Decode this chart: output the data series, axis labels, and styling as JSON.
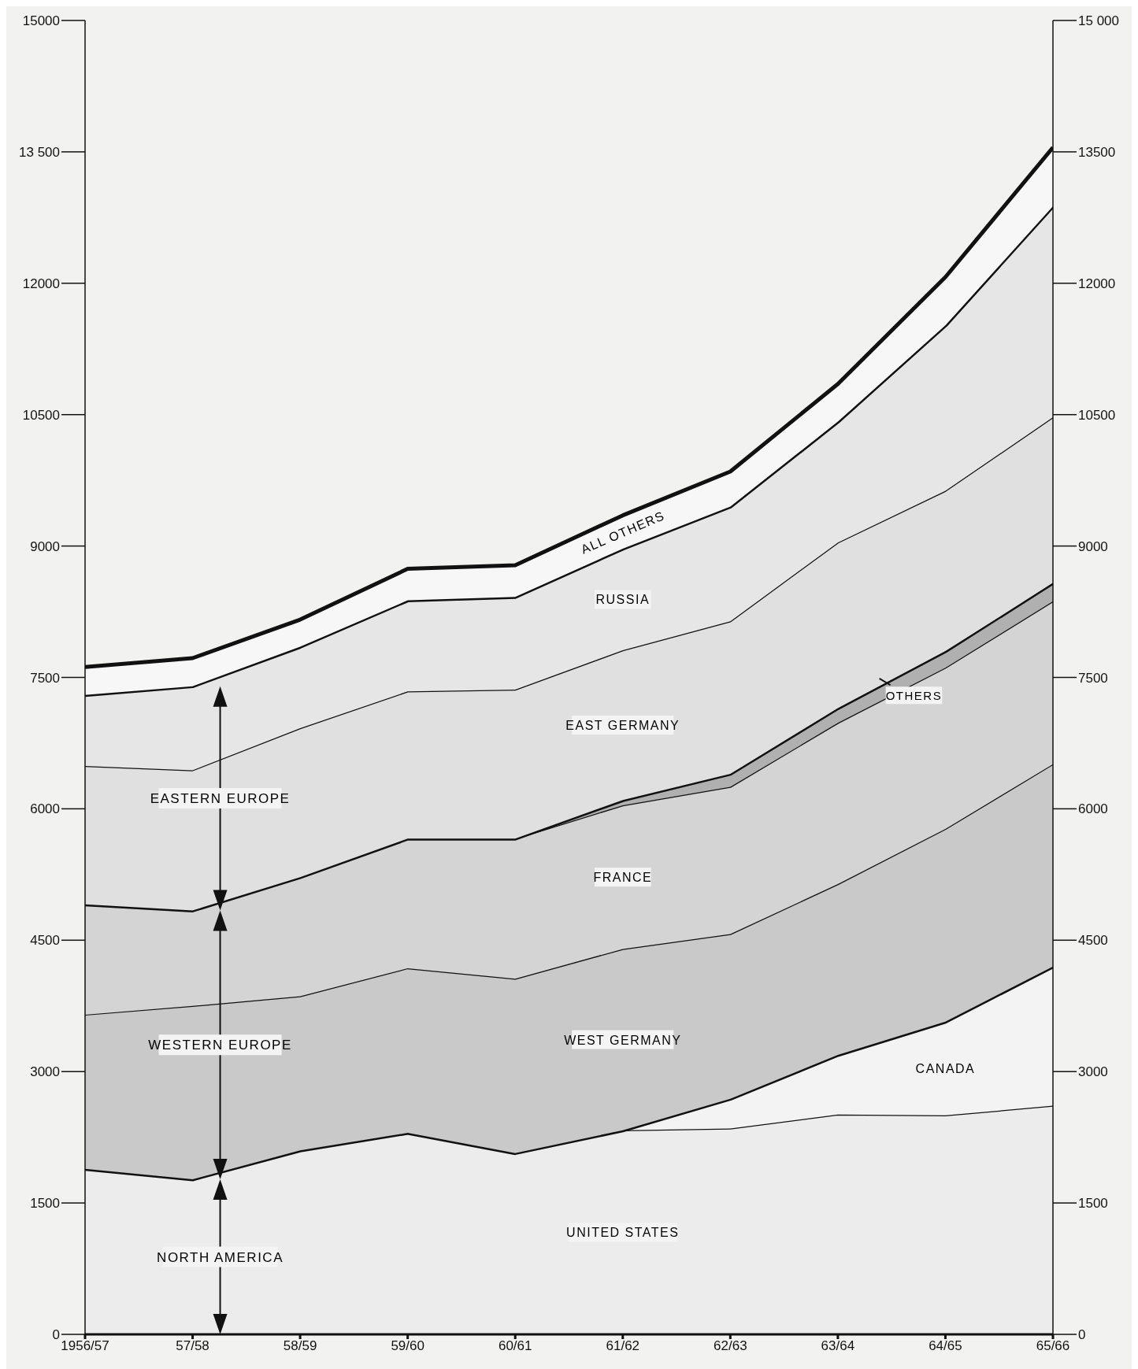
{
  "chart_data": {
    "type": "area",
    "stacked": true,
    "categories": [
      "1956/57",
      "57/58",
      "58/59",
      "59/60",
      "60/61",
      "61/62",
      "62/63",
      "63/64",
      "64/65",
      "65/66"
    ],
    "series": [
      {
        "name": "UNITED STATES",
        "color": "#ececec",
        "values": [
          1890,
          1770,
          2100,
          2300,
          2070,
          2330,
          2350,
          2510,
          2500,
          2610
        ]
      },
      {
        "name": "CANADA",
        "color": "#f3f3f3",
        "values": [
          0,
          0,
          0,
          0,
          0,
          0,
          340,
          680,
          1070,
          1590
        ]
      },
      {
        "name": "WEST GERMANY",
        "color": "#c9c9c9",
        "values": [
          1760,
          1980,
          1760,
          1880,
          1990,
          2070,
          1880,
          1950,
          2200,
          2310
        ]
      },
      {
        "name": "FRANCE",
        "color": "#d4d4d4",
        "values": [
          1260,
          1090,
          1360,
          1480,
          1600,
          1640,
          1680,
          1840,
          1840,
          1860
        ]
      },
      {
        "name": "OTHERS",
        "color": "#b0b0b0",
        "values": [
          0,
          0,
          0,
          0,
          0,
          60,
          150,
          170,
          190,
          210
        ]
      },
      {
        "name": "EAST GERMANY",
        "color": "#e0e0e0",
        "values": [
          1580,
          1600,
          1700,
          1680,
          1700,
          1710,
          1740,
          1890,
          1830,
          1890
        ]
      },
      {
        "name": "RUSSIA",
        "color": "#e6e6e6",
        "values": [
          810,
          960,
          930,
          1040,
          1060,
          1160,
          1310,
          1380,
          1890,
          2410
        ]
      },
      {
        "name": "ALL OTHERS",
        "color": "#f7f7f7",
        "values": [
          320,
          320,
          310,
          360,
          360,
          380,
          400,
          430,
          550,
          670
        ]
      }
    ],
    "ylim": [
      0,
      15000
    ],
    "yticks": [
      0,
      1500,
      3000,
      4500,
      6000,
      7500,
      9000,
      10500,
      12000,
      {
        "value": 13500,
        "label": "13 500"
      },
      15000
    ],
    "y2lim": [
      0,
      15000
    ],
    "y2ticks": [
      0,
      1500,
      3000,
      4500,
      6000,
      7500,
      9000,
      10500,
      12000,
      13500,
      {
        "value": 15000,
        "label": "15 000"
      }
    ],
    "annotations": [
      "NORTH AMERICA",
      "WESTERN EUROPE",
      "EASTERN EUROPE"
    ]
  }
}
